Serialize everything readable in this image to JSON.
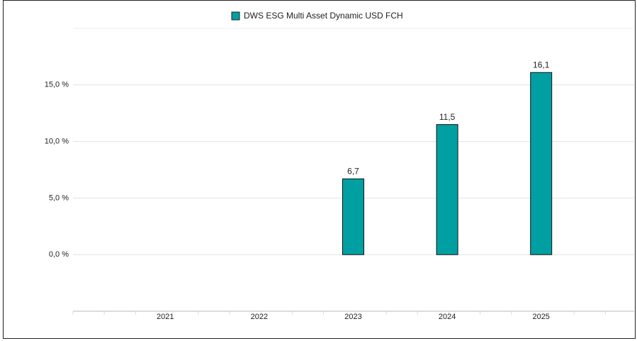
{
  "chart_data": {
    "type": "bar",
    "legend": "DWS ESG Multi Asset Dynamic USD FCH",
    "categories": [
      "2021",
      "2022",
      "2023",
      "2024",
      "2025"
    ],
    "values": [
      null,
      null,
      6.7,
      11.5,
      16.1
    ],
    "value_labels": [
      null,
      null,
      "6,7",
      "11,5",
      "16,1"
    ],
    "color": "#00a0a2",
    "ylim": [
      -5,
      20
    ],
    "yticks": [
      {
        "value": 0,
        "label": "0,0 %"
      },
      {
        "value": 5,
        "label": "5,0 %"
      },
      {
        "value": 10,
        "label": "10,0 %"
      },
      {
        "value": 15,
        "label": "15,0 %"
      }
    ],
    "grid": true,
    "legend_position": "top"
  }
}
